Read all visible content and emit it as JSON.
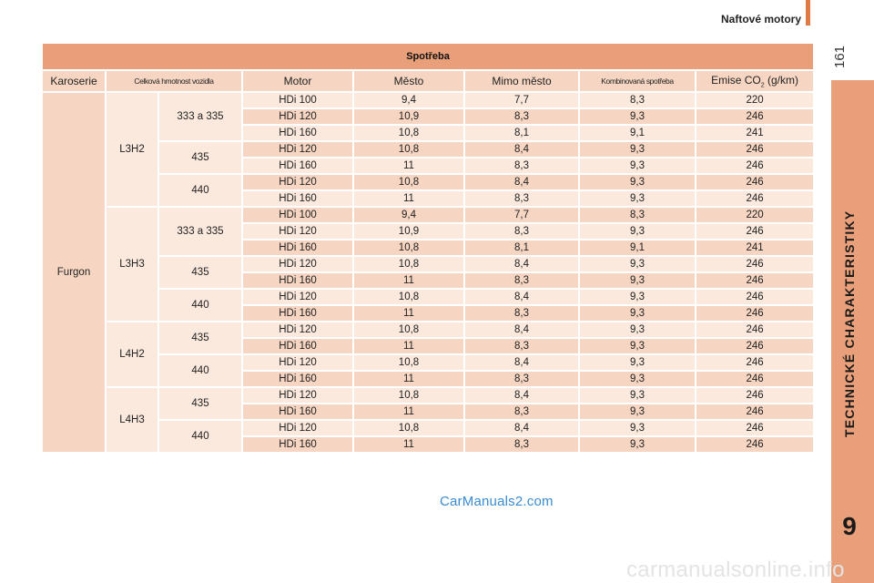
{
  "header": {
    "title": "Naftové motory",
    "page_number": "161"
  },
  "side": {
    "label": "TECHNICKÉ CHARAKTERISTIKY",
    "chapter": "9"
  },
  "table": {
    "title": "Spotřeba",
    "columns": [
      "Karoserie",
      "Celková hmotnost vozidla",
      "Motor",
      "Město",
      "Mimo město",
      "Kombinovaná spotřeba",
      "Emise CO",
      "2",
      " (g/km)"
    ],
    "body": "Furgon",
    "groups": [
      {
        "name": "L3H2",
        "masses": [
          {
            "mass": "333 a 335",
            "rows": [
              [
                "HDi 100",
                "9,4",
                "7,7",
                "8,3",
                "220"
              ],
              [
                "HDi 120",
                "10,9",
                "8,3",
                "9,3",
                "246"
              ],
              [
                "HDi 160",
                "10,8",
                "8,1",
                "9,1",
                "241"
              ]
            ]
          },
          {
            "mass": "435",
            "rows": [
              [
                "HDi 120",
                "10,8",
                "8,4",
                "9,3",
                "246"
              ],
              [
                "HDi 160",
                "11",
                "8,3",
                "9,3",
                "246"
              ]
            ]
          },
          {
            "mass": "440",
            "rows": [
              [
                "HDi 120",
                "10,8",
                "8,4",
                "9,3",
                "246"
              ],
              [
                "HDi 160",
                "11",
                "8,3",
                "9,3",
                "246"
              ]
            ]
          }
        ]
      },
      {
        "name": "L3H3",
        "masses": [
          {
            "mass": "333 a 335",
            "rows": [
              [
                "HDi 100",
                "9,4",
                "7,7",
                "8,3",
                "220"
              ],
              [
                "HDi 120",
                "10,9",
                "8,3",
                "9,3",
                "246"
              ],
              [
                "HDi 160",
                "10,8",
                "8,1",
                "9,1",
                "241"
              ]
            ]
          },
          {
            "mass": "435",
            "rows": [
              [
                "HDi 120",
                "10,8",
                "8,4",
                "9,3",
                "246"
              ],
              [
                "HDi 160",
                "11",
                "8,3",
                "9,3",
                "246"
              ]
            ]
          },
          {
            "mass": "440",
            "rows": [
              [
                "HDi 120",
                "10,8",
                "8,4",
                "9,3",
                "246"
              ],
              [
                "HDi 160",
                "11",
                "8,3",
                "9,3",
                "246"
              ]
            ]
          }
        ]
      },
      {
        "name": "L4H2",
        "masses": [
          {
            "mass": "435",
            "rows": [
              [
                "HDi 120",
                "10,8",
                "8,4",
                "9,3",
                "246"
              ],
              [
                "HDi 160",
                "11",
                "8,3",
                "9,3",
                "246"
              ]
            ]
          },
          {
            "mass": "440",
            "rows": [
              [
                "HDi 120",
                "10,8",
                "8,4",
                "9,3",
                "246"
              ],
              [
                "HDi 160",
                "11",
                "8,3",
                "9,3",
                "246"
              ]
            ]
          }
        ]
      },
      {
        "name": "L4H3",
        "masses": [
          {
            "mass": "435",
            "rows": [
              [
                "HDi 120",
                "10,8",
                "8,4",
                "9,3",
                "246"
              ],
              [
                "HDi 160",
                "11",
                "8,3",
                "9,3",
                "246"
              ]
            ]
          },
          {
            "mass": "440",
            "rows": [
              [
                "HDi 120",
                "10,8",
                "8,4",
                "9,3",
                "246"
              ],
              [
                "HDi 160",
                "11",
                "8,3",
                "9,3",
                "246"
              ]
            ]
          }
        ]
      }
    ]
  },
  "watermarks": {
    "site": "CarManuals2.com",
    "bottom": "carmanualsonline.info"
  },
  "colors": {
    "accent": "#e07a45",
    "header_row": "#e9a07a",
    "cell_dark": "#f6d6c2",
    "cell_light": "#fbe9dd",
    "watermark_link": "#3a8bd0"
  }
}
